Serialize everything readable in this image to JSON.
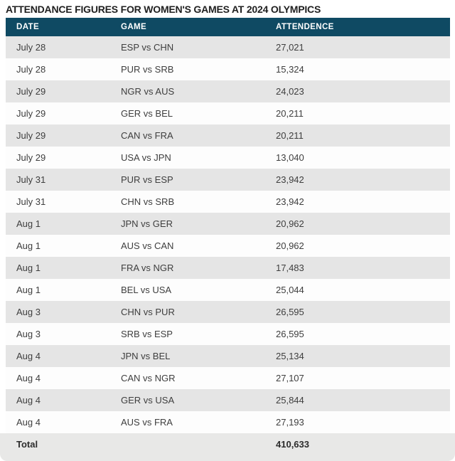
{
  "title": "ATTENDANCE FIGURES FOR WOMEN'S GAMES AT 2024 OLYMPICS",
  "table": {
    "columns": [
      "DATE",
      "GAME",
      "ATTENDENCE"
    ],
    "rows": [
      {
        "date": "July 28",
        "game": "ESP vs CHN",
        "attendance": "27,021"
      },
      {
        "date": "July 28",
        "game": "PUR vs SRB",
        "attendance": "15,324"
      },
      {
        "date": "July 29",
        "game": "NGR vs AUS",
        "attendance": "24,023"
      },
      {
        "date": "July 29",
        "game": "GER vs BEL",
        "attendance": "20,211"
      },
      {
        "date": "July 29",
        "game": "CAN vs FRA",
        "attendance": "20,211"
      },
      {
        "date": "July 29",
        "game": "USA vs JPN",
        "attendance": "13,040"
      },
      {
        "date": "July 31",
        "game": "PUR vs ESP",
        "attendance": "23,942"
      },
      {
        "date": "July 31",
        "game": "CHN vs SRB",
        "attendance": "23,942"
      },
      {
        "date": "Aug 1",
        "game": "JPN vs GER",
        "attendance": "20,962"
      },
      {
        "date": "Aug 1",
        "game": "AUS vs CAN",
        "attendance": "20,962"
      },
      {
        "date": "Aug 1",
        "game": "FRA vs NGR",
        "attendance": "17,483"
      },
      {
        "date": "Aug 1",
        "game": "BEL vs USA",
        "attendance": "25,044"
      },
      {
        "date": "Aug 3",
        "game": "CHN vs PUR",
        "attendance": "26,595"
      },
      {
        "date": "Aug 3",
        "game": "SRB vs ESP",
        "attendance": "26,595"
      },
      {
        "date": "Aug 4",
        "game": "JPN vs BEL",
        "attendance": "25,134"
      },
      {
        "date": "Aug 4",
        "game": "CAN vs NGR",
        "attendance": "27,107"
      },
      {
        "date": "Aug 4",
        "game": "GER vs USA",
        "attendance": "25,844"
      },
      {
        "date": "Aug 4",
        "game": "AUS vs FRA",
        "attendance": "27,193"
      }
    ],
    "total_label": "Total",
    "total_value": "410,633"
  },
  "colors": {
    "header_bg": "#0f4a63",
    "header_text": "#ffffff",
    "row_odd_bg": "#e5e5e5",
    "row_even_bg": "#fdfdfd",
    "footer_bg": "#e8e8e7",
    "title_text": "#1f1f1f",
    "cell_text": "#3e3e3e"
  },
  "chart_data": {
    "type": "table",
    "title": "ATTENDANCE FIGURES FOR WOMEN'S GAMES AT 2024 OLYMPICS",
    "columns": [
      "DATE",
      "GAME",
      "ATTENDENCE"
    ],
    "rows": [
      [
        "July 28",
        "ESP vs CHN",
        27021
      ],
      [
        "July 28",
        "PUR vs SRB",
        15324
      ],
      [
        "July 29",
        "NGR vs AUS",
        24023
      ],
      [
        "July 29",
        "GER vs BEL",
        20211
      ],
      [
        "July 29",
        "CAN vs FRA",
        20211
      ],
      [
        "July 29",
        "USA vs JPN",
        13040
      ],
      [
        "July 31",
        "PUR vs ESP",
        23942
      ],
      [
        "July 31",
        "CHN vs SRB",
        23942
      ],
      [
        "Aug 1",
        "JPN vs GER",
        20962
      ],
      [
        "Aug 1",
        "AUS vs CAN",
        20962
      ],
      [
        "Aug 1",
        "FRA vs NGR",
        17483
      ],
      [
        "Aug 1",
        "BEL vs USA",
        25044
      ],
      [
        "Aug 3",
        "CHN vs PUR",
        26595
      ],
      [
        "Aug 3",
        "SRB vs ESP",
        26595
      ],
      [
        "Aug 4",
        "JPN vs BEL",
        25134
      ],
      [
        "Aug 4",
        "CAN vs NGR",
        27107
      ],
      [
        "Aug 4",
        "GER vs USA",
        25844
      ],
      [
        "Aug 4",
        "AUS vs FRA",
        27193
      ]
    ],
    "total": 410633
  }
}
